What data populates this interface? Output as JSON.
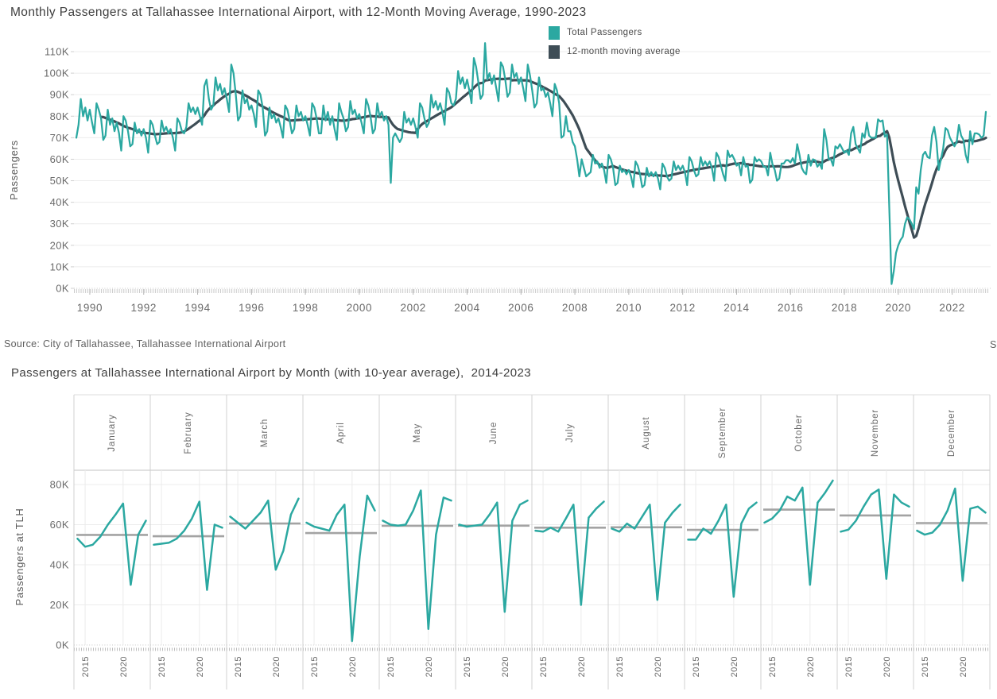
{
  "source": {
    "text": "Source: City of Tallahassee, Tallahassee International Airport",
    "right_fragment": "S"
  },
  "chart_data": [
    {
      "type": "line",
      "title": "Monthly Passengers at Tallahassee International Airport, with 12-Month Moving Average, 1990-2023",
      "ylabel": "Passengers",
      "unit": "thousands of passengers (K)",
      "x_range": [
        "1990-01",
        "2023-10"
      ],
      "grid": true,
      "legend_position": "top-right",
      "y_ticks": [
        "0K",
        "10K",
        "20K",
        "30K",
        "40K",
        "50K",
        "60K",
        "70K",
        "80K",
        "90K",
        "100K",
        "110K"
      ],
      "x_ticks": [
        "1990",
        "1992",
        "1994",
        "1996",
        "1998",
        "2000",
        "2002",
        "2004",
        "2006",
        "2008",
        "2010",
        "2012",
        "2014",
        "2016",
        "2018",
        "2020",
        "2022"
      ],
      "legend": [
        {
          "label": "Total Passengers",
          "color": "#2BA8A1"
        },
        {
          "label": "12-month moving average",
          "color": "#3E4D56"
        }
      ],
      "series": [
        {
          "name": "Total Passengers",
          "color": "#2BA8A1",
          "values_by_year": {
            "1990": [
              70,
              76,
              88,
              80,
              84,
              78,
              83,
              77,
              72,
              86,
              83,
              79
            ],
            "1991": [
              69,
              71,
              83,
              76,
              79,
              73,
              77,
              72,
              64,
              80,
              78,
              73
            ],
            "1992": [
              66,
              67,
              77,
              72,
              74,
              71,
              74,
              70,
              63,
              78,
              76,
              71
            ],
            "1993": [
              67,
              68,
              78,
              73,
              75,
              72,
              74,
              70,
              64,
              79,
              77,
              73
            ],
            "1994": [
              72,
              75,
              86,
              82,
              84,
              81,
              84,
              80,
              76,
              94,
              97,
              88
            ],
            "1995": [
              83,
              85,
              98,
              92,
              95,
              90,
              93,
              88,
              82,
              104,
              100,
              90
            ],
            "1996": [
              78,
              80,
              92,
              86,
              88,
              83,
              85,
              81,
              75,
              92,
              90,
              84
            ],
            "1997": [
              71,
              73,
              84,
              79,
              81,
              77,
              79,
              75,
              70,
              85,
              83,
              78
            ],
            "1998": [
              72,
              74,
              85,
              80,
              82,
              78,
              80,
              76,
              71,
              86,
              84,
              79
            ],
            "1999": [
              72,
              72,
              85,
              78,
              82,
              76,
              80,
              74,
              69,
              86,
              82,
              79
            ],
            "2000": [
              73,
              75,
              87,
              81,
              83,
              79,
              81,
              77,
              72,
              88,
              85,
              80
            ],
            "2001": [
              72,
              74,
              86,
              80,
              82,
              78,
              80,
              76,
              49,
              70,
              72,
              70
            ],
            "2002": [
              68,
              70,
              82,
              77,
              79,
              76,
              79,
              75,
              70,
              86,
              84,
              79
            ],
            "2003": [
              75,
              77,
              90,
              84,
              87,
              83,
              86,
              82,
              76,
              93,
              91,
              86
            ],
            "2004": [
              85,
              88,
              101,
              95,
              98,
              93,
              97,
              92,
              86,
              107,
              103,
              96
            ],
            "2005": [
              88,
              90,
              114,
              97,
              100,
              95,
              99,
              93,
              87,
              105,
              103,
              97
            ],
            "2006": [
              89,
              91,
              104,
              98,
              100,
              95,
              98,
              93,
              87,
              104,
              99,
              92
            ],
            "2007": [
              84,
              86,
              98,
              92,
              93,
              89,
              91,
              86,
              80,
              95,
              92,
              86
            ],
            "2008": [
              70,
              71,
              80,
              73,
              73,
              68,
              66,
              60,
              52,
              60,
              56,
              52
            ],
            "2009": [
              53,
              54,
              62,
              58,
              59,
              56,
              58,
              55,
              49,
              62,
              60,
              56
            ],
            "2010": [
              48,
              49,
              57,
              54,
              55,
              53,
              55,
              52,
              47,
              59,
              57,
              53
            ],
            "2011": [
              47,
              48,
              56,
              52,
              54,
              52,
              54,
              51,
              46,
              58,
              56,
              52
            ],
            "2012": [
              50,
              51,
              59,
              55,
              57,
              55,
              57,
              54,
              48,
              61,
              59,
              55
            ],
            "2013": [
              52,
              53,
              61,
              57,
              59,
              57,
              59,
              56,
              50,
              63,
              61,
              57
            ],
            "2014": [
              53,
              50,
              64,
              61,
              62,
              60,
              57,
              58,
              52.5,
              61,
              56.5,
              57
            ],
            "2015": [
              49,
              50.5,
              61,
              59,
              60,
              59,
              56.5,
              56.5,
              52.5,
              63,
              57.5,
              55
            ],
            "2016": [
              50,
              51,
              58,
              58,
              59.5,
              59.5,
              58.5,
              60.5,
              58,
              67,
              62,
              56
            ],
            "2017": [
              54,
              53,
              62,
              57,
              60,
              59.5,
              56.5,
              58,
              55.5,
              74,
              69,
              60
            ],
            "2018": [
              60,
              57,
              66,
              65,
              67,
              65,
              63,
              64,
              62,
              72,
              75,
              67
            ],
            "2019": [
              65,
              63,
              72,
              70,
              77,
              71,
              70,
              70,
              70,
              78.5,
              77.5,
              78
            ],
            "2020": [
              70.5,
              71.5,
              37.5,
              2,
              8,
              16.5,
              20,
              22.5,
              24,
              30,
              33,
              32
            ],
            "2021": [
              30,
              27.5,
              47,
              44,
              55,
              62,
              63.5,
              61,
              60.5,
              71,
              75,
              68
            ],
            "2022": [
              55,
              60,
              65,
              74.5,
              73.5,
              70,
              68,
              66,
              68,
              76,
              71,
              69
            ],
            "2023": [
              62,
              58.5,
              73,
              67,
              72,
              72,
              71.5,
              70,
              71,
              82
            ]
          }
        },
        {
          "name": "12-month moving average",
          "color": "#3E4D56",
          "derived": "trailing 12-month mean of Total Passengers",
          "window": 12
        }
      ]
    },
    {
      "type": "line_small_multiples",
      "title": "Passengers at Tallahassee International Airport by Month (with 10-year average),  2014-2023",
      "ylabel": "Passengers at TLH",
      "unit": "thousands of passengers (K)",
      "years": [
        2014,
        2015,
        2016,
        2017,
        2018,
        2019,
        2020,
        2021,
        2022,
        2023
      ],
      "y_ticks": [
        "0K",
        "20K",
        "40K",
        "60K",
        "80K"
      ],
      "x_ticks": [
        "2015",
        "2020"
      ],
      "line_color": "#2BA8A1",
      "average_color": "#a3a3a3",
      "months": [
        {
          "label": "January",
          "values": [
            53,
            49,
            50,
            54,
            60,
            65,
            70.5,
            30,
            55,
            62
          ],
          "average": 54.9
        },
        {
          "label": "February",
          "values": [
            50,
            50.5,
            51,
            53,
            57,
            63,
            71.5,
            27.5,
            60,
            58.5
          ],
          "average": 54.2
        },
        {
          "label": "March",
          "values": [
            64,
            61,
            58,
            62,
            66,
            72,
            37.5,
            47,
            65,
            73
          ],
          "average": 60.6
        },
        {
          "label": "April",
          "values": [
            61,
            59,
            58,
            57,
            65,
            70,
            2,
            44,
            74.5,
            67
          ],
          "average": 55.8
        },
        {
          "label": "May",
          "values": [
            62,
            60,
            59.5,
            60,
            67,
            77,
            8,
            55,
            73.5,
            72
          ],
          "average": 59.4
        },
        {
          "label": "June",
          "values": [
            60,
            59,
            59.5,
            60,
            65,
            71,
            16.5,
            62,
            70,
            72
          ],
          "average": 59.5
        },
        {
          "label": "July",
          "values": [
            57,
            56.5,
            58.5,
            56.5,
            63,
            70,
            20,
            63.5,
            68,
            71.5
          ],
          "average": 58.5
        },
        {
          "label": "August",
          "values": [
            58,
            56.5,
            60.5,
            58,
            64,
            70,
            22.5,
            61,
            66,
            70
          ],
          "average": 58.7
        },
        {
          "label": "September",
          "values": [
            52.5,
            52.5,
            58,
            55.5,
            62,
            70,
            24,
            60.5,
            68,
            71
          ],
          "average": 57.4
        },
        {
          "label": "October",
          "values": [
            61,
            63,
            67,
            74,
            72,
            78.5,
            30,
            71,
            76,
            82
          ],
          "average": 67.5
        },
        {
          "label": "November",
          "values": [
            56.5,
            57.5,
            62,
            69,
            75,
            77.5,
            33,
            75,
            71,
            69
          ],
          "average": 64.6
        },
        {
          "label": "December",
          "values": [
            57,
            55,
            56,
            60,
            67,
            78,
            32,
            68,
            69,
            66
          ],
          "average": 60.8
        }
      ]
    }
  ]
}
